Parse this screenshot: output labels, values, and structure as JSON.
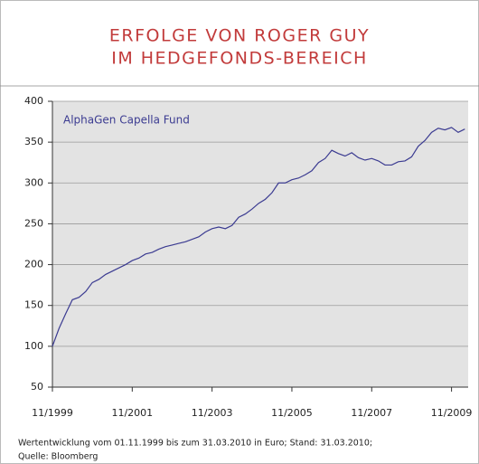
{
  "chart_data": {
    "type": "line",
    "title": [
      "ERFOLGE VON ROGER GUY",
      "IM HEDGEFONDS-BEREICH"
    ],
    "note": [
      "Wertentwicklung vom 01.11.1999 bis zum 31.03.2010 in Euro; Stand: 31.03.2010;",
      "Quelle: Bloomberg"
    ],
    "x": [
      "11/1999",
      "01/2000",
      "03/2000",
      "05/2000",
      "07/2000",
      "09/2000",
      "11/2000",
      "01/2001",
      "03/2001",
      "05/2001",
      "07/2001",
      "09/2001",
      "11/2001",
      "01/2002",
      "03/2002",
      "05/2002",
      "07/2002",
      "09/2002",
      "11/2002",
      "01/2003",
      "03/2003",
      "05/2003",
      "07/2003",
      "09/2003",
      "11/2003",
      "01/2004",
      "03/2004",
      "05/2004",
      "07/2004",
      "09/2004",
      "11/2004",
      "01/2005",
      "03/2005",
      "05/2005",
      "07/2005",
      "09/2005",
      "11/2005",
      "01/2006",
      "03/2006",
      "05/2006",
      "07/2006",
      "09/2006",
      "11/2006",
      "01/2007",
      "03/2007",
      "05/2007",
      "07/2007",
      "09/2007",
      "11/2007",
      "01/2008",
      "03/2008",
      "05/2008",
      "07/2008",
      "09/2008",
      "11/2008",
      "01/2009",
      "03/2009",
      "05/2009",
      "07/2009",
      "09/2009",
      "11/2009",
      "01/2010",
      "03/2010"
    ],
    "series": [
      {
        "name": "AlphaGen Capella Fund",
        "color": "#3b3b91",
        "values": [
          100,
          122,
          140,
          157,
          160,
          167,
          178,
          182,
          188,
          192,
          196,
          200,
          205,
          208,
          213,
          215,
          219,
          222,
          224,
          226,
          228,
          231,
          234,
          240,
          244,
          246,
          244,
          248,
          258,
          262,
          268,
          275,
          280,
          288,
          300,
          300,
          304,
          306,
          310,
          315,
          325,
          330,
          340,
          336,
          333,
          337,
          331,
          328,
          330,
          327,
          322,
          322,
          326,
          327,
          332,
          345,
          352,
          362,
          367,
          365,
          368,
          362,
          366
        ]
      }
    ],
    "xlim": [
      "11/1999",
      "04/2010"
    ],
    "xticks": [
      "11/1999",
      "11/2001",
      "11/2003",
      "11/2005",
      "11/2007",
      "11/2009"
    ],
    "ylim": [
      50,
      400
    ],
    "yticks": [
      50,
      100,
      150,
      200,
      250,
      300,
      350,
      400
    ],
    "grid": true
  }
}
